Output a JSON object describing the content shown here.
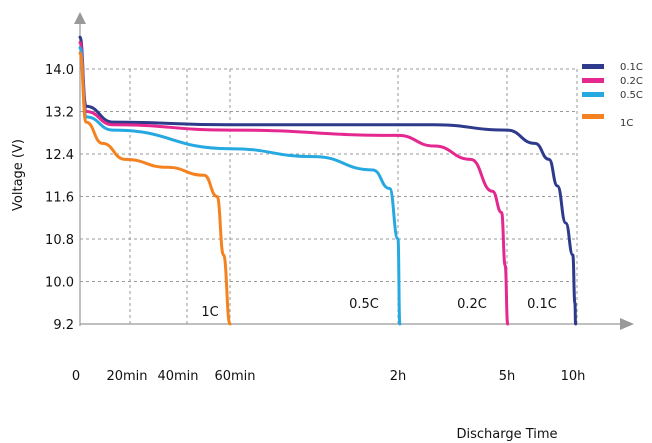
{
  "chart_data": {
    "type": "line",
    "title": "",
    "ylabel": "Voltage (V)",
    "xlabel": "Discharge Time",
    "y_ticks": [
      "14.0",
      "13.2",
      "12.4",
      "11.6",
      "10.8",
      "10.0",
      "9.2"
    ],
    "x_ticks": [
      "0",
      "20min",
      "40min",
      "60min",
      "2h",
      "5h",
      "10h"
    ],
    "ylim": [
      9.2,
      14.8
    ],
    "grid": "dashed",
    "legend_position": "top-right",
    "curve_labels": [
      "1C",
      "0.5C",
      "0.2C",
      "0.1C"
    ],
    "series": [
      {
        "name": "0.1C",
        "color": "#2e3a8c",
        "points": [
          [
            0.0,
            14.6
          ],
          [
            0.04,
            13.3
          ],
          [
            0.22,
            13.0
          ],
          [
            1.0,
            12.95
          ],
          [
            3.0,
            12.95
          ],
          [
            5.0,
            12.85
          ],
          [
            7.0,
            12.6
          ],
          [
            8.0,
            12.3
          ],
          [
            8.6,
            11.8
          ],
          [
            9.2,
            11.1
          ],
          [
            9.7,
            10.5
          ],
          [
            9.85,
            9.6
          ],
          [
            9.9,
            9.2
          ]
        ]
      },
      {
        "name": "0.2C",
        "color": "#e4288f",
        "points": [
          [
            0.0,
            14.5
          ],
          [
            0.04,
            13.2
          ],
          [
            0.22,
            12.95
          ],
          [
            1.0,
            12.85
          ],
          [
            2.0,
            12.75
          ],
          [
            3.0,
            12.55
          ],
          [
            4.0,
            12.3
          ],
          [
            4.6,
            11.7
          ],
          [
            4.85,
            11.3
          ],
          [
            4.95,
            10.3
          ],
          [
            5.05,
            9.2
          ]
        ]
      },
      {
        "name": "0.5C",
        "color": "#26a9e0",
        "points": [
          [
            0.0,
            14.4
          ],
          [
            0.04,
            13.1
          ],
          [
            0.22,
            12.85
          ],
          [
            1.0,
            12.5
          ],
          [
            1.5,
            12.35
          ],
          [
            1.85,
            12.1
          ],
          [
            1.95,
            11.75
          ],
          [
            2.0,
            10.8
          ],
          [
            2.05,
            9.2
          ]
        ]
      },
      {
        "name": "1C",
        "color": "#f58220",
        "points": [
          [
            0.0,
            14.3
          ],
          [
            0.04,
            13.0
          ],
          [
            0.15,
            12.6
          ],
          [
            0.3,
            12.3
          ],
          [
            0.55,
            12.15
          ],
          [
            0.8,
            12.0
          ],
          [
            0.9,
            11.6
          ],
          [
            0.95,
            10.5
          ],
          [
            1.0,
            9.2
          ]
        ]
      }
    ]
  }
}
